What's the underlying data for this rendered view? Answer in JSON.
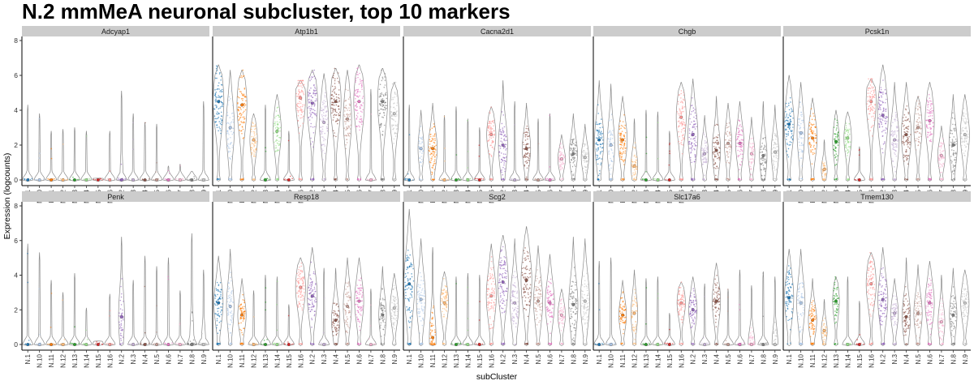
{
  "chart_data": {
    "type": "violin",
    "title": "N.2 mmMeA neuronal subcluster, top 10 markers",
    "xlabel": "subCluster",
    "ylabel": "Expression (logcounts)",
    "ylim": [
      -0.2,
      8.2
    ],
    "yticks": [
      0,
      2,
      4,
      6,
      8
    ],
    "grid": false,
    "categories": [
      "N.1",
      "N.10",
      "N.11",
      "N.12",
      "N.13",
      "N.14",
      "N.15",
      "N.16",
      "N.2",
      "N.3",
      "N.4",
      "N.5",
      "N.6",
      "N.7",
      "N.8",
      "N.9"
    ],
    "category_colors": [
      "#1f77b4",
      "#aec7e8",
      "#ff7f0e",
      "#ffbb78",
      "#2ca02c",
      "#98df8a",
      "#d62728",
      "#ff9896",
      "#9467bd",
      "#c5b0d5",
      "#8c564b",
      "#c49c94",
      "#e377c2",
      "#f7b6d2",
      "#7f7f7f",
      "#c7c7c7"
    ],
    "panels": [
      {
        "gene": "Adcyap1",
        "median": [
          0,
          0,
          0,
          0,
          0,
          0,
          0,
          0,
          0,
          0,
          0,
          0,
          0,
          0,
          0,
          0
        ],
        "max": [
          4.3,
          3.8,
          2.8,
          2.9,
          3.0,
          2.8,
          0.1,
          2.8,
          5.1,
          3.8,
          3.3,
          3.2,
          0.8,
          0.9,
          0.5,
          4.5
        ],
        "density": [
          0.0,
          0.0,
          0.0,
          0.0,
          0.0,
          0.0,
          0.0,
          0.0,
          0.05,
          0.0,
          0.0,
          0.0,
          0.0,
          0.0,
          0.0,
          0.0
        ]
      },
      {
        "gene": "Atp1b1",
        "median": [
          4.5,
          3.0,
          4.3,
          2.3,
          0,
          2.8,
          0,
          4.7,
          4.4,
          3.3,
          4.5,
          3.5,
          4.5,
          0,
          4.5,
          3.8
        ],
        "max": [
          6.6,
          6.3,
          6.3,
          3.8,
          4.3,
          4.9,
          2.8,
          5.7,
          6.3,
          6.1,
          6.4,
          6.3,
          6.6,
          5.2,
          6.4,
          5.6
        ],
        "density": [
          1.0,
          0.7,
          0.9,
          0.6,
          0.0,
          0.7,
          0.0,
          0.9,
          1.0,
          0.8,
          1.0,
          0.7,
          1.0,
          0.0,
          0.9,
          0.8
        ]
      },
      {
        "gene": "Cacna2d1",
        "median": [
          0,
          1.8,
          1.8,
          0,
          0,
          0,
          0,
          2.6,
          2.0,
          0,
          1.8,
          0,
          0,
          1.2,
          1.5,
          1.3
        ],
        "max": [
          4.3,
          4.0,
          4.4,
          3.7,
          4.2,
          3.5,
          3.0,
          4.2,
          5.7,
          4.5,
          4.4,
          3.5,
          3.8,
          2.6,
          3.8,
          3.2
        ],
        "density": [
          0.0,
          0.4,
          0.8,
          0.0,
          0.0,
          0.0,
          0.0,
          0.8,
          0.8,
          0.0,
          0.7,
          0.0,
          0.0,
          0.6,
          0.7,
          0.6
        ]
      },
      {
        "gene": "Chgb",
        "median": [
          2.3,
          2.0,
          2.3,
          0.8,
          0,
          0,
          0,
          3.6,
          2.6,
          1.5,
          1.7,
          2.1,
          2.1,
          1.5,
          1.4,
          1.6
        ],
        "max": [
          5.7,
          5.5,
          4.8,
          3.5,
          4.0,
          3.9,
          2.8,
          5.6,
          5.8,
          3.7,
          4.8,
          4.4,
          4.5,
          3.6,
          4.5,
          4.3
        ],
        "density": [
          0.8,
          0.6,
          0.8,
          0.5,
          0.0,
          0.0,
          0.0,
          0.9,
          0.9,
          0.6,
          0.7,
          0.6,
          0.7,
          0.5,
          0.6,
          0.6
        ]
      },
      {
        "gene": "Pcsk1n",
        "median": [
          3.2,
          2.7,
          2.4,
          0.6,
          2.2,
          2.4,
          0,
          4.5,
          3.7,
          2.3,
          2.6,
          3.0,
          3.4,
          1.4,
          2.0,
          2.6
        ],
        "max": [
          6.0,
          5.6,
          4.7,
          2.3,
          4.0,
          3.9,
          1.9,
          5.8,
          6.6,
          5.6,
          5.6,
          4.8,
          5.6,
          3.1,
          4.9,
          4.9
        ],
        "density": [
          0.9,
          0.6,
          0.8,
          0.4,
          0.5,
          0.6,
          0.0,
          0.9,
          1.0,
          0.8,
          0.9,
          0.7,
          0.8,
          0.6,
          0.7,
          0.8
        ]
      },
      {
        "gene": "Penk",
        "median": [
          0,
          0,
          0,
          0,
          0,
          0,
          0,
          0,
          1.6,
          0,
          0,
          0,
          0,
          0,
          0,
          0
        ],
        "max": [
          5.8,
          5.3,
          3.7,
          3.0,
          4.1,
          2.1,
          0.2,
          2.9,
          6.2,
          3.7,
          5.1,
          4.5,
          5.0,
          3.1,
          6.4,
          4.3
        ],
        "density": [
          0.0,
          0.0,
          0.0,
          0.0,
          0.0,
          0.0,
          0.0,
          0.0,
          0.4,
          0.0,
          0.0,
          0.0,
          0.0,
          0.0,
          0.2,
          0.2
        ]
      },
      {
        "gene": "Resp18",
        "median": [
          2.4,
          2.2,
          1.7,
          0,
          0,
          0,
          0,
          3.3,
          2.8,
          0,
          1.4,
          2.2,
          2.5,
          0,
          1.7,
          2.1
        ],
        "max": [
          5.1,
          5.5,
          3.8,
          3.1,
          4.0,
          3.9,
          2.3,
          5.0,
          5.6,
          4.4,
          4.4,
          5.0,
          5.0,
          3.2,
          4.5,
          4.1
        ],
        "density": [
          0.8,
          0.6,
          0.7,
          0.0,
          0.0,
          0.0,
          0.0,
          0.9,
          0.9,
          0.0,
          0.7,
          0.7,
          0.8,
          0.0,
          0.6,
          0.7
        ]
      },
      {
        "gene": "Scg2",
        "median": [
          3.5,
          2.6,
          0.4,
          2.4,
          0,
          0,
          0,
          2.8,
          3.6,
          2.4,
          3.7,
          2.5,
          2.4,
          1.7,
          2.3,
          2.5
        ],
        "max": [
          7.8,
          6.1,
          5.6,
          4.2,
          3.9,
          4.1,
          4.0,
          5.8,
          6.3,
          6.1,
          6.8,
          5.7,
          5.2,
          3.2,
          6.2,
          6.1
        ],
        "density": [
          1.0,
          0.8,
          0.5,
          0.7,
          0.0,
          0.0,
          0.0,
          0.9,
          1.0,
          0.8,
          1.0,
          0.8,
          0.8,
          0.6,
          0.8,
          0.8
        ]
      },
      {
        "gene": "Slc17a6",
        "median": [
          0,
          0,
          1.7,
          1.8,
          0,
          0,
          0,
          2.4,
          2.0,
          0,
          2.5,
          0,
          0,
          0,
          0,
          0
        ],
        "max": [
          4.8,
          5.0,
          3.7,
          4.3,
          3.8,
          3.9,
          1.8,
          3.6,
          3.9,
          3.5,
          4.7,
          3.2,
          4.3,
          3.4,
          4.2,
          3.9
        ],
        "density": [
          0.0,
          0.0,
          0.6,
          0.5,
          0.0,
          0.0,
          0.0,
          0.7,
          0.7,
          0.0,
          0.7,
          0.0,
          0.0,
          0.5,
          0.0,
          0.4
        ]
      },
      {
        "gene": "Tmem130",
        "median": [
          2.7,
          2.4,
          1.4,
          0.8,
          2.5,
          0,
          0,
          3.5,
          2.6,
          1.8,
          1.6,
          1.8,
          2.4,
          1.3,
          1.7,
          2.4
        ],
        "max": [
          5.5,
          5.5,
          3.8,
          2.6,
          3.9,
          3.9,
          2.5,
          5.3,
          5.6,
          3.8,
          5.0,
          4.6,
          4.8,
          4.0,
          4.4,
          4.3
        ],
        "density": [
          0.8,
          0.7,
          0.7,
          0.4,
          0.5,
          0.0,
          0.0,
          0.9,
          0.9,
          0.6,
          0.7,
          0.7,
          0.8,
          0.5,
          0.6,
          0.7
        ]
      }
    ]
  }
}
